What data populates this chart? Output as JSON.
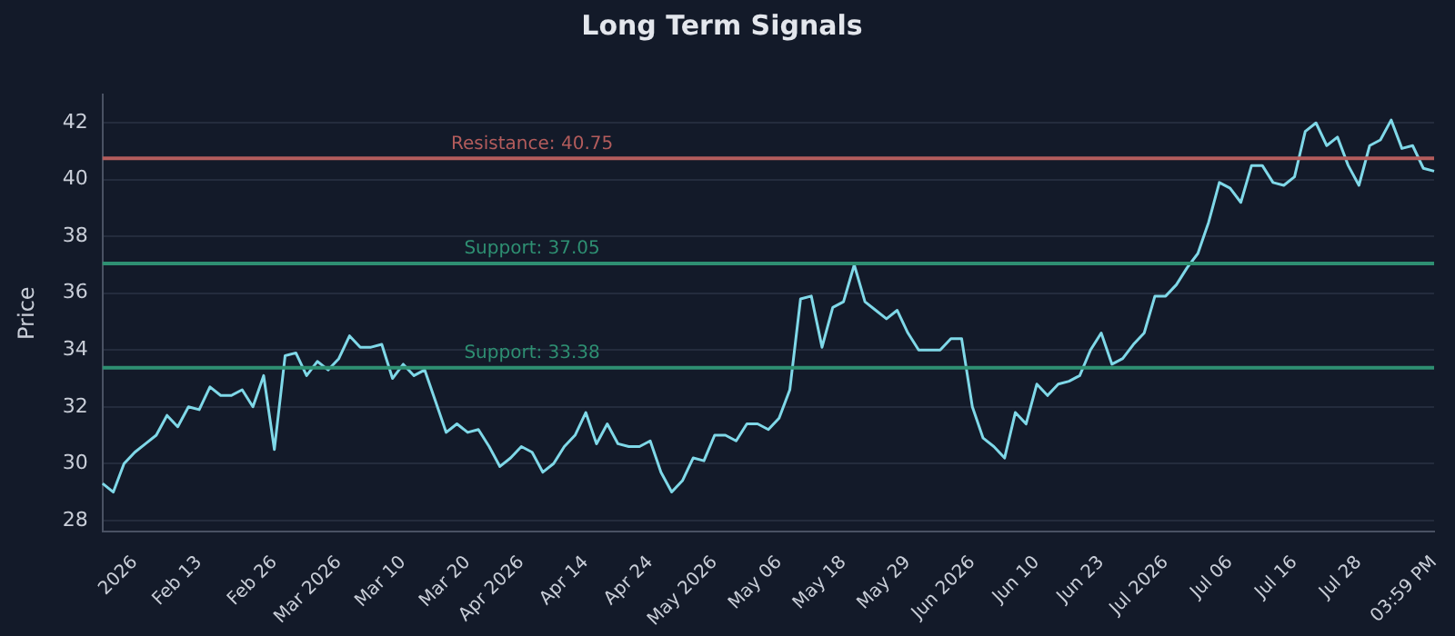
{
  "chart_data": {
    "type": "line",
    "title": "Long Term Signals",
    "ylabel": "Price",
    "categories": [
      null,
      null,
      null,
      "2026",
      null,
      null,
      null,
      null,
      null,
      "Feb 13",
      null,
      null,
      null,
      null,
      null,
      null,
      "Feb 26",
      null,
      null,
      null,
      null,
      null,
      "Mar 2026",
      null,
      null,
      null,
      null,
      null,
      "Mar 10",
      null,
      null,
      null,
      null,
      null,
      "Mar 20",
      null,
      null,
      null,
      null,
      "Apr 2026",
      null,
      null,
      null,
      null,
      null,
      "Apr 14",
      null,
      null,
      null,
      null,
      null,
      "Apr 24",
      null,
      null,
      null,
      null,
      null,
      "May 2026",
      null,
      null,
      null,
      null,
      null,
      "May 06",
      null,
      null,
      null,
      null,
      null,
      "May 18",
      null,
      null,
      null,
      null,
      null,
      "May 29",
      null,
      null,
      null,
      null,
      null,
      "Jun 2026",
      null,
      null,
      null,
      null,
      null,
      "Jun 10",
      null,
      null,
      null,
      null,
      null,
      "Jun 23",
      null,
      null,
      null,
      null,
      null,
      "Jul 2026",
      null,
      null,
      null,
      null,
      null,
      "Jul 06",
      null,
      null,
      null,
      null,
      null,
      "Jul 16",
      null,
      null,
      null,
      null,
      null,
      "Jul 28",
      null,
      null,
      null,
      null,
      null,
      null,
      "03:59 PM"
    ],
    "series": [
      {
        "color": "#7fd8e8",
        "values": [
          29.3,
          29.0,
          30.0,
          30.4,
          30.7,
          31.0,
          31.7,
          31.3,
          32.0,
          31.9,
          32.7,
          32.4,
          32.4,
          32.6,
          32.0,
          33.1,
          30.5,
          33.8,
          33.9,
          33.1,
          33.6,
          33.3,
          33.7,
          34.5,
          34.1,
          34.1,
          34.2,
          33.0,
          33.5,
          33.1,
          33.3,
          32.2,
          31.1,
          31.4,
          31.1,
          31.2,
          30.6,
          29.9,
          30.2,
          30.6,
          30.4,
          29.7,
          30.0,
          30.6,
          31.0,
          31.8,
          30.7,
          31.4,
          30.7,
          30.6,
          30.6,
          30.8,
          29.7,
          29.0,
          29.4,
          30.2,
          30.1,
          31.0,
          31.0,
          30.8,
          31.4,
          31.4,
          31.2,
          31.6,
          32.6,
          35.8,
          35.9,
          34.1,
          35.5,
          35.7,
          37.0,
          35.7,
          35.4,
          35.1,
          35.4,
          34.6,
          34.0,
          34.0,
          34.0,
          34.4,
          34.4,
          32.0,
          30.9,
          30.6,
          30.2,
          31.8,
          31.4,
          32.8,
          32.4,
          32.8,
          32.9,
          33.1,
          34.0,
          34.6,
          33.5,
          33.7,
          34.2,
          34.6,
          35.9,
          35.9,
          36.3,
          36.9,
          37.4,
          38.5,
          39.9,
          39.7,
          39.2,
          40.5,
          40.5,
          39.9,
          39.8,
          40.1,
          41.7,
          42.0,
          41.2,
          41.5,
          40.5,
          39.8,
          41.2,
          41.4,
          42.1,
          41.1,
          41.2,
          40.4,
          40.3
        ]
      }
    ],
    "ylim": [
      27.6,
      43
    ],
    "yticks": [
      28,
      30,
      32,
      34,
      36,
      38,
      40,
      42
    ],
    "grid": "y",
    "marker": "none",
    "line_style": "solid",
    "ref_lines": [
      {
        "axis": "y",
        "value": 40.75,
        "label": "Resistance: 40.75",
        "color": "#b35c5c"
      },
      {
        "axis": "y",
        "value": 37.05,
        "label": "Support: 37.05",
        "color": "#2e8f72"
      },
      {
        "axis": "y",
        "value": 33.38,
        "label": "Support: 33.38",
        "color": "#2e8f72"
      }
    ]
  }
}
